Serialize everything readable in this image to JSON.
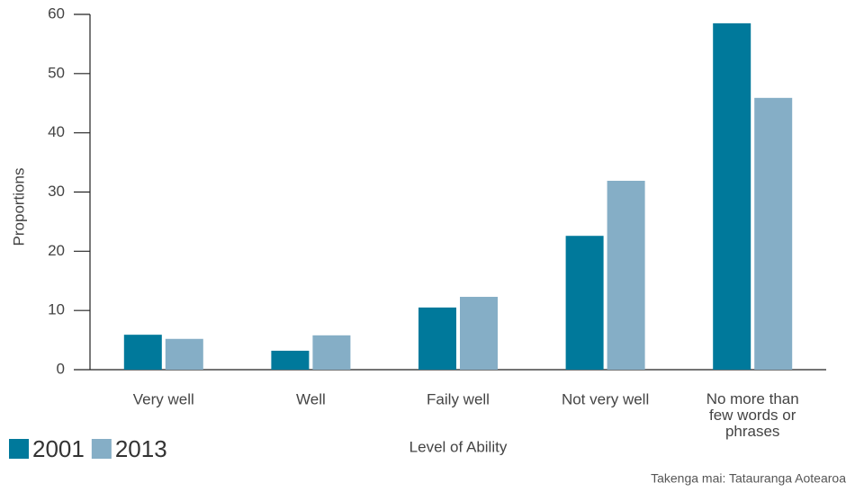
{
  "chart_data": {
    "type": "bar",
    "categories": [
      "Very well",
      "Well",
      "Faily well",
      "Not very well",
      "No more than few words or phrases"
    ],
    "series": [
      {
        "name": "2001",
        "color": "#00799b",
        "values": [
          5.9,
          3.2,
          10.5,
          22.6,
          58.5
        ]
      },
      {
        "name": "2013",
        "color": "#85aec6",
        "values": [
          5.2,
          5.8,
          12.3,
          31.9,
          45.9
        ]
      }
    ],
    "ylim": [
      0,
      60
    ],
    "yticks": [
      0,
      10,
      20,
      30,
      40,
      50,
      60
    ],
    "ylabel": "Proportions",
    "xlabel": "Level of Ability",
    "source": "Takenga mai: Tatauranga Aotearoa",
    "legend": "bottom-left"
  }
}
